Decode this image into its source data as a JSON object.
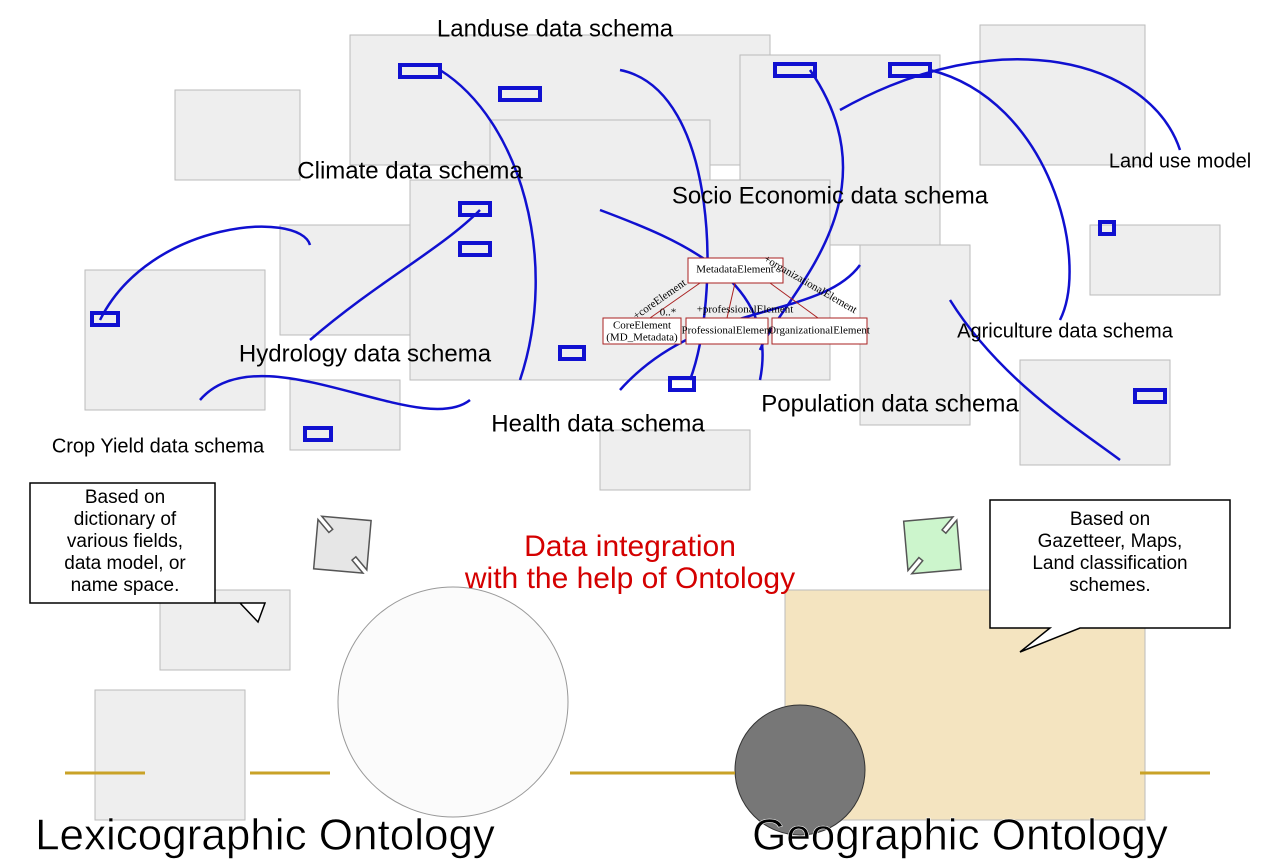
{
  "schemas": {
    "landuse": "Landuse data schema",
    "climate": "Climate data schema",
    "socio": "Socio Economic data schema",
    "landuse_model": "Land use model",
    "agriculture": "Agriculture data schema",
    "hydrology": "Hydrology data schema",
    "population": "Population data schema",
    "health": "Health data schema",
    "crop": "Crop Yield data schema"
  },
  "uml": {
    "root": "MetadataElement",
    "core": "CoreElement",
    "core_sub": "(MD_Metadata)",
    "professional": "ProfessionalElement",
    "organizational": "OrganizationalElement",
    "core_role": "+coreElement",
    "professional_role": "+professionalElement",
    "organizational_role": "+organizationalElement",
    "multiplicity": "0..*"
  },
  "callout_left": {
    "lines": [
      "Based on",
      "dictionary of",
      "various fields,",
      "data model, or",
      "name space."
    ]
  },
  "callout_right": {
    "lines": [
      "Based on",
      "Gazetteer, Maps,",
      "Land classification",
      "schemes."
    ]
  },
  "center": {
    "lines": [
      "Data integration",
      "with the help of Ontology"
    ]
  },
  "bottom": {
    "lexicographic": "Lexicographic Ontology",
    "geographic": "Geographic Ontology"
  }
}
